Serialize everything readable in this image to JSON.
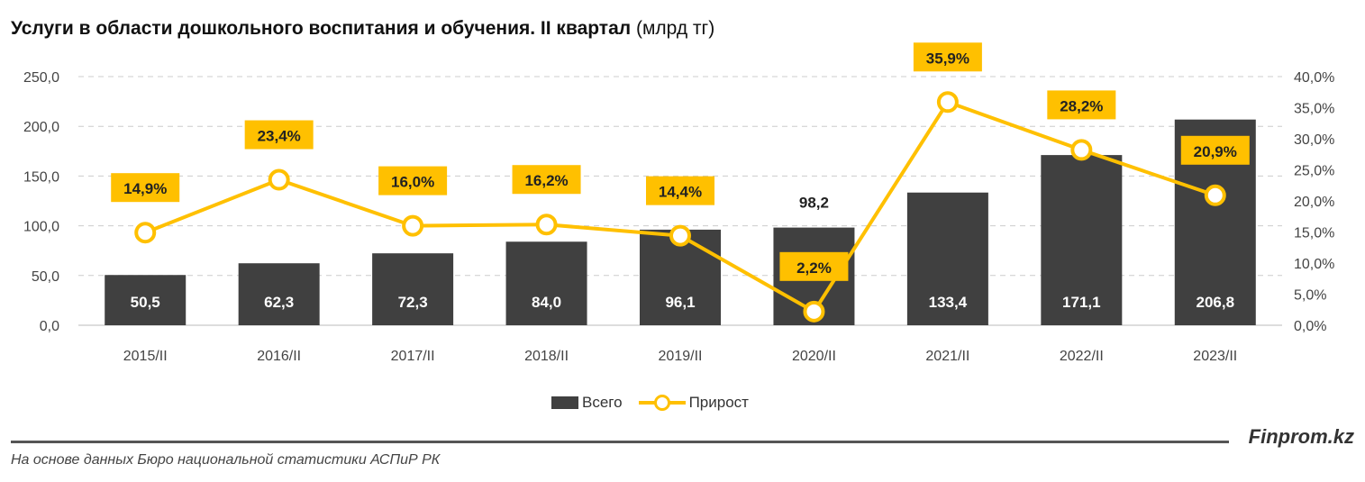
{
  "chart_data": {
    "type": "bar+line",
    "title": "Услуги в области дошкольного воспитания и обучения. II квартал",
    "title_unit": "(млрд тг)",
    "categories": [
      "2015/II",
      "2016/II",
      "2017/II",
      "2018/II",
      "2019/II",
      "2020/II",
      "2021/II",
      "2022/II",
      "2023/II"
    ],
    "series": [
      {
        "name": "Всего",
        "type": "bar",
        "axis": "left",
        "color": "#404040",
        "values": [
          50.5,
          62.3,
          72.3,
          84.0,
          96.1,
          98.2,
          133.4,
          171.1,
          206.8
        ],
        "labels": [
          "50,5",
          "62,3",
          "72,3",
          "84,0",
          "96,1",
          "98,2",
          "133,4",
          "171,1",
          "206,8"
        ]
      },
      {
        "name": "Прирост",
        "type": "line",
        "axis": "right",
        "color": "#FFC000",
        "values": [
          14.9,
          23.4,
          16.0,
          16.2,
          14.4,
          2.2,
          35.9,
          28.2,
          20.9
        ],
        "labels": [
          "14,9%",
          "23,4%",
          "16,0%",
          "16,2%",
          "14,4%",
          "2,2%",
          "35,9%",
          "28,2%",
          "20,9%"
        ]
      }
    ],
    "y_left": {
      "range": [
        0,
        250
      ],
      "ticks": [
        "0,0",
        "50,0",
        "100,0",
        "150,0",
        "200,0",
        "250,0"
      ]
    },
    "y_right": {
      "range": [
        0,
        40
      ],
      "ticks": [
        "0,0%",
        "5,0%",
        "10,0%",
        "15,0%",
        "20,0%",
        "25,0%",
        "30,0%",
        "35,0%",
        "40,0%"
      ]
    },
    "grid": true,
    "legend": "bottom"
  },
  "footer": {
    "brand": "Finprom.kz",
    "source": "На основе данных Бюро национальной статистики АСПиР РК"
  }
}
